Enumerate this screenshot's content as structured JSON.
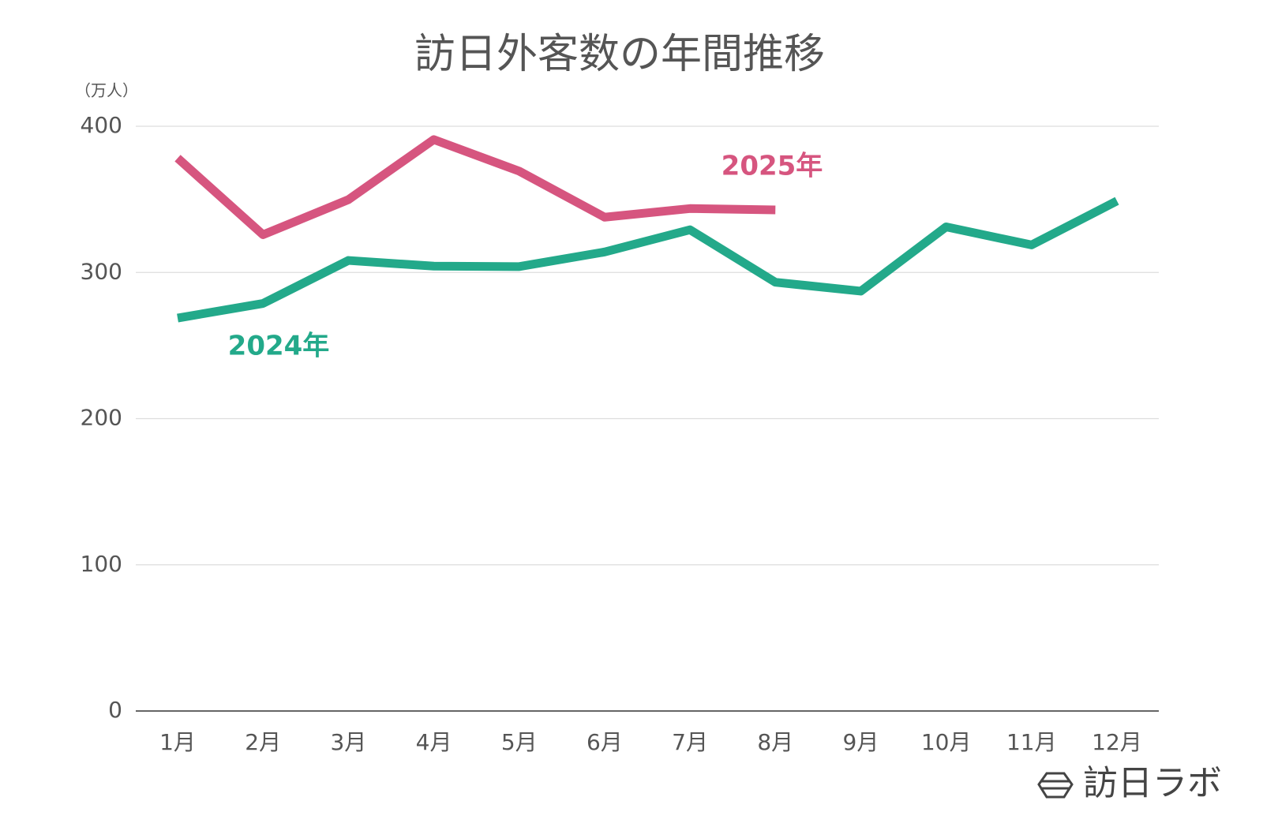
{
  "chart_data": {
    "type": "line",
    "title": "訪日外客数の年間推移",
    "y_unit": "（万人）",
    "categories": [
      "1月",
      "2月",
      "3月",
      "4月",
      "5月",
      "6月",
      "7月",
      "8月",
      "9月",
      "10月",
      "11月",
      "12月"
    ],
    "series": [
      {
        "name": "2024年",
        "color": "#23a98a",
        "values": [
          268.8,
          278.8,
          308.2,
          304.3,
          304.0,
          314.0,
          329.2,
          293.3,
          287.2,
          331.2,
          318.8,
          348.9
        ]
      },
      {
        "name": "2025年",
        "color": "#d6557f",
        "values": [
          378.2,
          325.8,
          349.8,
          390.9,
          369.3,
          337.8,
          343.7,
          342.8,
          null,
          null,
          null,
          null
        ]
      }
    ],
    "ylim": [
      0,
      400
    ],
    "yticks": [
      0,
      100,
      200,
      300,
      400
    ],
    "grid": true,
    "watermark": "訪日ラボ"
  }
}
